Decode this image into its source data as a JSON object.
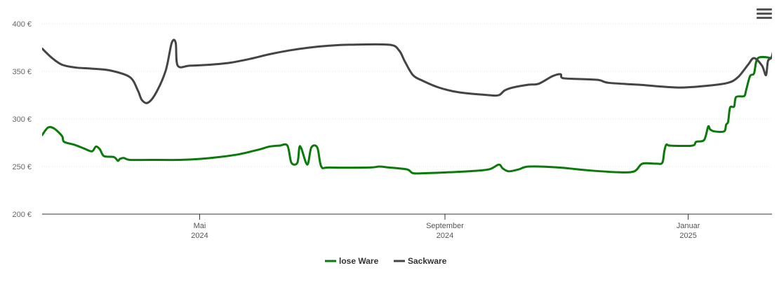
{
  "menu": {
    "icon": "hamburger-menu-icon"
  },
  "chart_data": {
    "type": "line",
    "y_ticks": [
      "200 €",
      "250 €",
      "300 €",
      "350 €",
      "400 €"
    ],
    "ylim": [
      200,
      400
    ],
    "x_ticks": [
      {
        "month": "Mai",
        "year": "2024",
        "day": 0.0
      },
      {
        "month": "September",
        "year": "2024",
        "day": 123
      },
      {
        "month": "Januar",
        "year": "2025",
        "day": 245
      }
    ],
    "xlim_days": [
      -79,
      287
    ],
    "grid": true,
    "legend_position": "bottom-center",
    "series": [
      {
        "name": "lose Ware",
        "color": "#0a7a0a",
        "points": [
          [
            -79,
            283
          ],
          [
            -76,
            291
          ],
          [
            -73,
            290
          ],
          [
            -69,
            282
          ],
          [
            -68,
            276
          ],
          [
            -63,
            273
          ],
          [
            -58,
            269
          ],
          [
            -54,
            266
          ],
          [
            -52,
            271
          ],
          [
            -50,
            268
          ],
          [
            -48,
            261
          ],
          [
            -43,
            260
          ],
          [
            -41,
            256
          ],
          [
            -40,
            258
          ],
          [
            -38,
            259
          ],
          [
            -35,
            257
          ],
          [
            -25,
            257
          ],
          [
            -10,
            257
          ],
          [
            0,
            258
          ],
          [
            10,
            260
          ],
          [
            20,
            263
          ],
          [
            30,
            268
          ],
          [
            35,
            271
          ],
          [
            40,
            272
          ],
          [
            44,
            272
          ],
          [
            46,
            254
          ],
          [
            49,
            254
          ],
          [
            50,
            270
          ],
          [
            51,
            269
          ],
          [
            54,
            252
          ],
          [
            56,
            270
          ],
          [
            59,
            270
          ],
          [
            61,
            250
          ],
          [
            65,
            249
          ],
          [
            85,
            249
          ],
          [
            90,
            250
          ],
          [
            95,
            249
          ],
          [
            104,
            247
          ],
          [
            107,
            243
          ],
          [
            113,
            243
          ],
          [
            125,
            244
          ],
          [
            135,
            245
          ],
          [
            145,
            247
          ],
          [
            150,
            252
          ],
          [
            152,
            248
          ],
          [
            155,
            245
          ],
          [
            160,
            247
          ],
          [
            165,
            250
          ],
          [
            180,
            249
          ],
          [
            195,
            246
          ],
          [
            210,
            244
          ],
          [
            218,
            245
          ],
          [
            222,
            253
          ],
          [
            229,
            253
          ],
          [
            232,
            254
          ],
          [
            233,
            266
          ],
          [
            234,
            273
          ],
          [
            236,
            272
          ],
          [
            247,
            272
          ],
          [
            249,
            276
          ],
          [
            253,
            278
          ],
          [
            255,
            292
          ],
          [
            256,
            289
          ],
          [
            258,
            287
          ],
          [
            263,
            287
          ],
          [
            264,
            294
          ],
          [
            265,
            297
          ],
          [
            266,
            312
          ],
          [
            268,
            313
          ],
          [
            269,
            323
          ],
          [
            273,
            324
          ],
          [
            274,
            330
          ],
          [
            276,
            345
          ],
          [
            278,
            348
          ],
          [
            280,
            364
          ],
          [
            287,
            364
          ]
        ]
      },
      {
        "name": "Sackware",
        "color": "#444444",
        "points": [
          [
            -79,
            374
          ],
          [
            -74,
            364
          ],
          [
            -69,
            357
          ],
          [
            -62,
            354
          ],
          [
            -55,
            353
          ],
          [
            -45,
            351
          ],
          [
            -35,
            344
          ],
          [
            -31,
            330
          ],
          [
            -29,
            320
          ],
          [
            -26,
            317
          ],
          [
            -22,
            327
          ],
          [
            -17,
            351
          ],
          [
            -14,
            380
          ],
          [
            -12,
            380
          ],
          [
            -11,
            356
          ],
          [
            -5,
            356
          ],
          [
            5,
            357
          ],
          [
            15,
            359
          ],
          [
            25,
            363
          ],
          [
            35,
            368
          ],
          [
            45,
            372
          ],
          [
            55,
            375
          ],
          [
            65,
            377
          ],
          [
            75,
            378
          ],
          [
            95,
            378
          ],
          [
            100,
            372
          ],
          [
            103,
            360
          ],
          [
            107,
            346
          ],
          [
            112,
            340
          ],
          [
            120,
            333
          ],
          [
            130,
            328
          ],
          [
            145,
            325
          ],
          [
            150,
            325
          ],
          [
            153,
            330
          ],
          [
            157,
            333
          ],
          [
            165,
            336
          ],
          [
            170,
            337
          ],
          [
            177,
            345
          ],
          [
            181,
            347
          ],
          [
            182,
            343
          ],
          [
            190,
            342
          ],
          [
            200,
            341
          ],
          [
            205,
            338
          ],
          [
            220,
            336
          ],
          [
            240,
            333
          ],
          [
            255,
            335
          ],
          [
            265,
            338
          ],
          [
            270,
            344
          ],
          [
            275,
            357
          ],
          [
            278,
            364
          ],
          [
            282,
            356
          ],
          [
            284,
            346
          ],
          [
            285,
            361
          ],
          [
            287,
            366
          ],
          [
            289,
            388
          ]
        ]
      }
    ]
  }
}
